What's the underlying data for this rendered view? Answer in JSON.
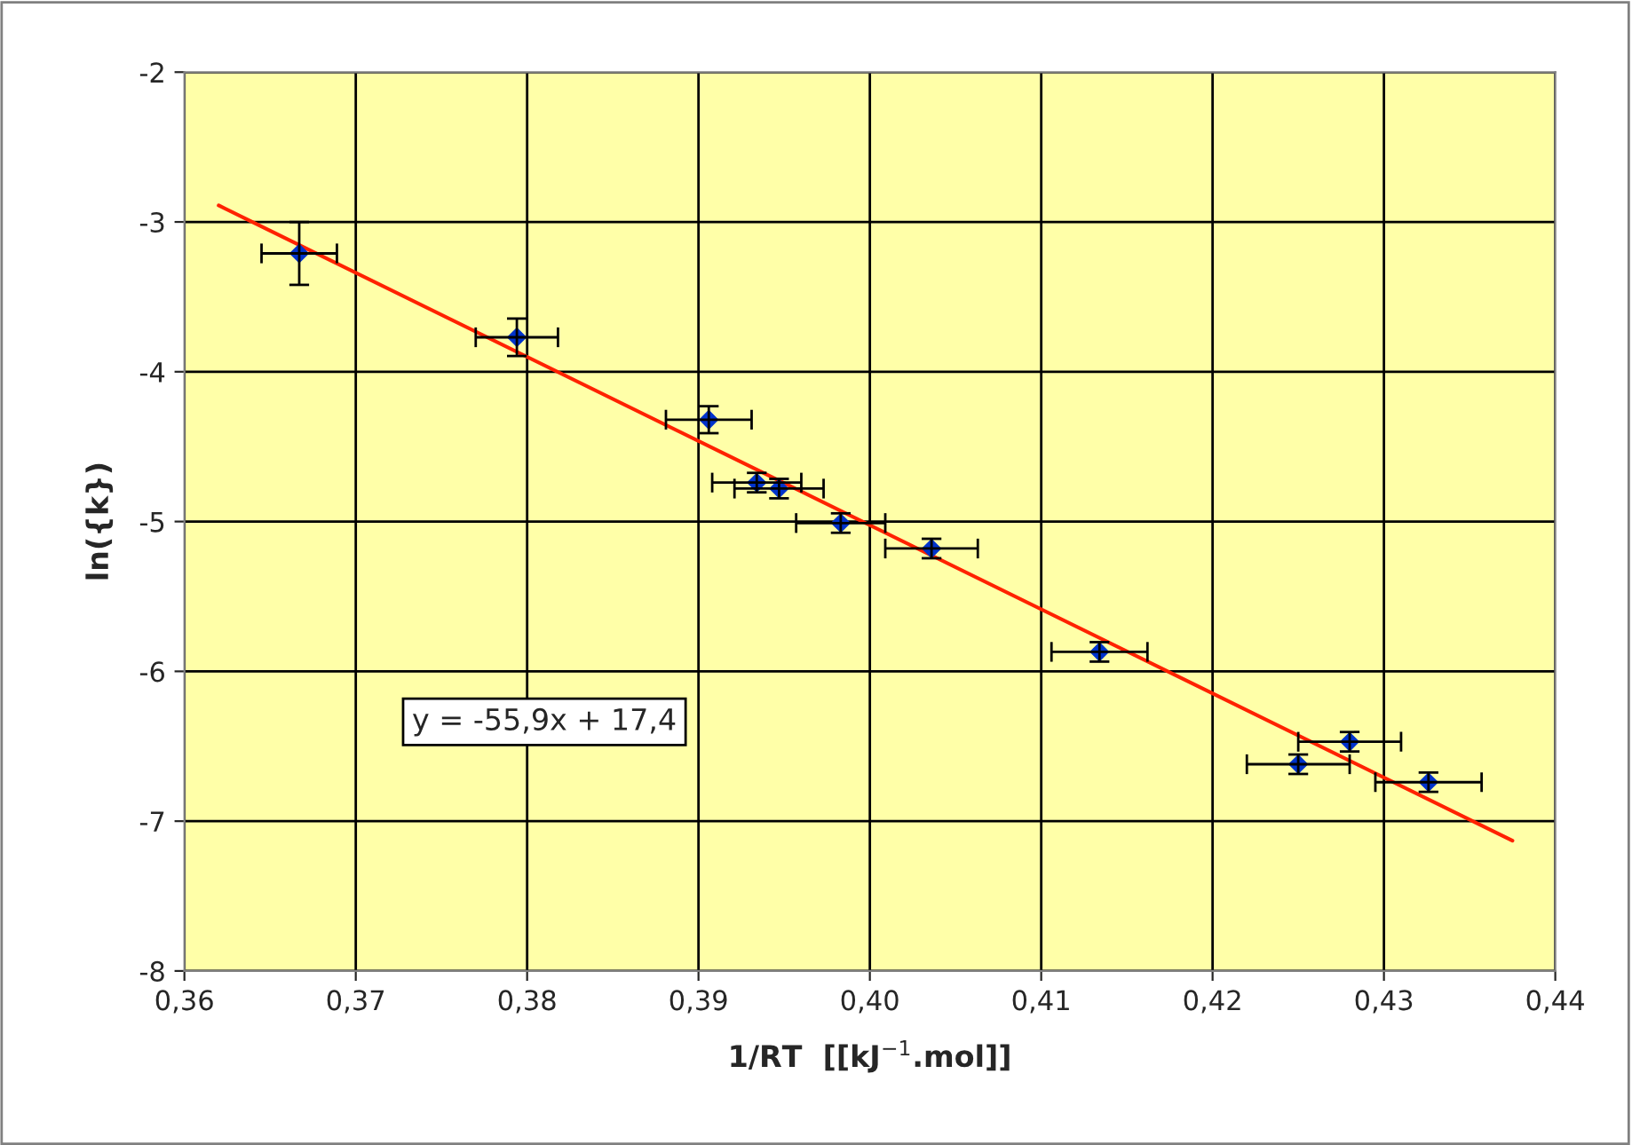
{
  "chart_data": {
    "type": "scatter",
    "xlabel": "1/RT  [[kJ$^{−1}$.mol]]",
    "ylabel": "ln({k})",
    "xlim": [
      0.36,
      0.44
    ],
    "ylim": [
      -8,
      -2
    ],
    "xticks": [
      {
        "value": 0.36,
        "label": "0,36"
      },
      {
        "value": 0.37,
        "label": "0,37"
      },
      {
        "value": 0.38,
        "label": "0,38"
      },
      {
        "value": 0.39,
        "label": "0,39"
      },
      {
        "value": 0.4,
        "label": "0,40"
      },
      {
        "value": 0.41,
        "label": "0,41"
      },
      {
        "value": 0.42,
        "label": "0,42"
      },
      {
        "value": 0.43,
        "label": "0,43"
      },
      {
        "value": 0.44,
        "label": "0,44"
      }
    ],
    "yticks": [
      -8,
      -7,
      -6,
      -5,
      -4,
      -3,
      -2
    ],
    "grid": true,
    "series": [
      {
        "marker": "diamond",
        "color": "#0033cc",
        "x": [
          0.3667,
          0.3794,
          0.3906,
          0.3934,
          0.3947,
          0.3983,
          0.4036,
          0.4134,
          0.428,
          0.425,
          0.4326
        ],
        "values": [
          -3.21,
          -3.77,
          -4.32,
          -4.74,
          -4.78,
          -5.01,
          -5.18,
          -5.87,
          -6.47,
          -6.62,
          -6.74
        ],
        "errors": [
          0.21,
          0.125,
          0.09,
          0.065,
          0.065,
          0.065,
          0.065,
          0.065,
          0.065,
          0.065,
          0.065
        ],
        "xerrors": [
          0.0022,
          0.0024,
          0.0025,
          0.0026,
          0.0026,
          0.0026,
          0.0027,
          0.0028,
          0.003,
          0.003,
          0.0031
        ]
      },
      {
        "type": "line",
        "color": "#ff2200",
        "x": [
          0.362,
          0.4375
        ],
        "values": [
          -2.89,
          -7.13
        ]
      }
    ],
    "annotations": [
      "y = -55,9x + 17,4"
    ]
  }
}
